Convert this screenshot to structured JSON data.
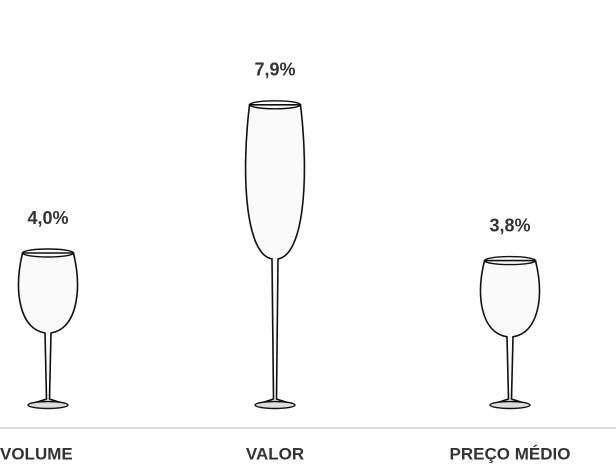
{
  "chart_data": {
    "type": "pictograph",
    "categories": [
      "VOLUME",
      "VALOR",
      "PREÇO MÉDIO"
    ],
    "values": [
      4.0,
      7.9,
      3.8
    ],
    "value_labels": [
      "4,0%",
      "7,9%",
      "3,8%"
    ],
    "color": "#111111"
  }
}
